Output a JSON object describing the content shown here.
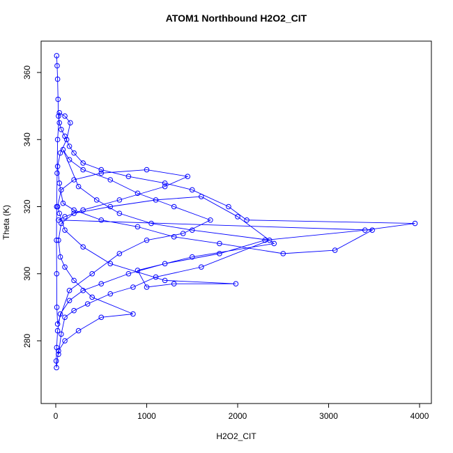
{
  "chart_data": {
    "type": "line",
    "markers": true,
    "title": "ATOM1 Northbound H2O2_CIT",
    "xlabel": "H2O2_CIT",
    "ylabel": "Theta (K)",
    "color": "#0000ff",
    "xlim": [
      -161,
      4130
    ],
    "ylim": [
      261.3,
      369.35
    ],
    "xticks": [
      0,
      1000,
      2000,
      3000,
      4000
    ],
    "yticks": [
      280,
      300,
      320,
      340,
      360
    ],
    "x": [
      10,
      15,
      20,
      25,
      30,
      40,
      60,
      100,
      150,
      200,
      300,
      500,
      800,
      1200,
      1500,
      1900,
      2100,
      3950,
      3400,
      2300,
      1800,
      1200,
      800,
      500,
      300,
      150,
      50,
      20,
      10,
      5,
      8,
      30,
      100,
      250,
      500,
      850,
      400,
      200,
      100,
      50,
      30,
      60,
      200,
      600,
      1100,
      1600,
      2000,
      2400,
      1500,
      900,
      1000,
      1300,
      1980,
      1200,
      600,
      300,
      100,
      40,
      20,
      60,
      200,
      500,
      1000,
      1450,
      1200,
      700,
      300,
      100,
      30,
      3480,
      3070,
      2500,
      1800,
      1300,
      900,
      500,
      200,
      80,
      40,
      20,
      50,
      120,
      160,
      100,
      40,
      20,
      15,
      10,
      8,
      10,
      12,
      20,
      150,
      400,
      700,
      1000,
      1400,
      1700,
      1300,
      900,
      600,
      300,
      150,
      80,
      250,
      450,
      700,
      1050,
      1500,
      2350,
      1600,
      1100,
      850,
      600,
      350,
      200,
      100,
      60,
      30
    ],
    "values": [
      365,
      362,
      358,
      352,
      347,
      345,
      343,
      341,
      338,
      336,
      333,
      331,
      329,
      327,
      325,
      320,
      316,
      315,
      313,
      310,
      306,
      303,
      300,
      297,
      295,
      292,
      288,
      283,
      278,
      274,
      272,
      277,
      280,
      283,
      287,
      288,
      293,
      298,
      302,
      305,
      310,
      315,
      318,
      320,
      322,
      323,
      317,
      309,
      305,
      301,
      296,
      297,
      297,
      298,
      303,
      308,
      313,
      318,
      320,
      325,
      328,
      330,
      331,
      329,
      326,
      322,
      319,
      317,
      316,
      313,
      307,
      306,
      309,
      311,
      314,
      316,
      319,
      321,
      327,
      332,
      336,
      340,
      345,
      347,
      348,
      340,
      330,
      320,
      310,
      300,
      290,
      285,
      295,
      300,
      306,
      310,
      312,
      316,
      320,
      324,
      328,
      331,
      334,
      337,
      326,
      322,
      318,
      315,
      313,
      310,
      302,
      299,
      296,
      294,
      291,
      289,
      287,
      282,
      276
    ]
  }
}
